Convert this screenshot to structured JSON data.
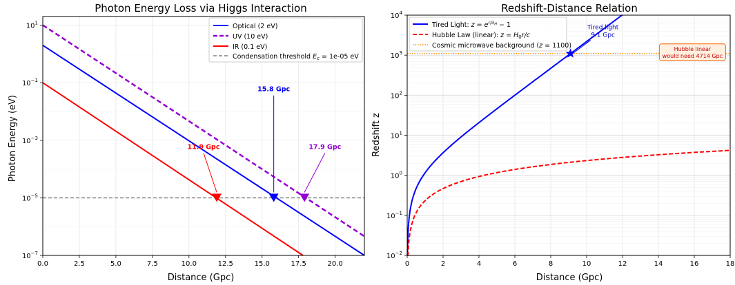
{
  "chart_data": [
    {
      "type": "line",
      "title": "Photon Energy Loss via Higgs Interaction",
      "xlabel": "Distance (Gpc)",
      "ylabel": "Photon Energy (eV)",
      "xlim": [
        0,
        22
      ],
      "ylim_log10": [
        -7,
        1.3
      ],
      "y_scale": "log",
      "grid": true,
      "legend_position": "top-right",
      "x_ticks": [
        "0.0",
        "2.5",
        "5.0",
        "7.5",
        "10.0",
        "12.5",
        "15.0",
        "17.5",
        "20.0"
      ],
      "y_ticks": [
        {
          "base": "10",
          "exp": "1",
          "value": 10
        },
        {
          "base": "10",
          "exp": "−1",
          "value": 0.1
        },
        {
          "base": "10",
          "exp": "−3",
          "value": 0.001
        },
        {
          "base": "10",
          "exp": "−5",
          "value": 1e-05
        },
        {
          "base": "10",
          "exp": "−7",
          "value": 1e-07
        }
      ],
      "series": [
        {
          "name": "Optical (2 eV)",
          "color": "#0000ff",
          "style": "solid",
          "E0": 2,
          "x": [
            0,
            22
          ],
          "y": [
            2,
            1e-07
          ]
        },
        {
          "name": "UV (10 eV)",
          "color": "#9400d3",
          "style": "dashed",
          "E0": 10,
          "x": [
            0,
            22
          ],
          "y": [
            10,
            4.6e-07
          ]
        },
        {
          "name": "IR (0.1 eV)",
          "color": "#ff0000",
          "style": "solid",
          "E0": 0.1,
          "x": [
            0,
            17.8
          ],
          "y": [
            0.1,
            1e-07
          ]
        }
      ],
      "threshold": {
        "legend_prefix": "Condensation threshold ",
        "legend_math": "E",
        "legend_sub": "c",
        "legend_suffix": " = 1e-05 eV",
        "value": 1e-05,
        "color": "#808080"
      },
      "markers": [
        {
          "x": 11.9,
          "y": 1e-05,
          "color": "#ff0000",
          "label": "11.9 Gpc",
          "label_x": 11.0,
          "label_y": 0.0005
        },
        {
          "x": 15.8,
          "y": 1e-05,
          "color": "#0000ff",
          "label": "15.8 Gpc",
          "label_x": 15.8,
          "label_y": 0.05
        },
        {
          "x": 17.9,
          "y": 1e-05,
          "color": "#9400d3",
          "label": "17.9 Gpc",
          "label_x": 19.3,
          "label_y": 0.0005
        }
      ]
    },
    {
      "type": "line",
      "title": "Redshift-Distance Relation",
      "xlabel": "Distance (Gpc)",
      "ylabel": "Redshift z",
      "xlim": [
        0,
        18
      ],
      "ylim_log10": [
        -2,
        4
      ],
      "y_scale": "log",
      "grid": true,
      "legend_position": "top-left",
      "x_ticks": [
        "0",
        "2",
        "4",
        "6",
        "8",
        "10",
        "12",
        "14",
        "16",
        "18"
      ],
      "y_ticks": [
        {
          "base": "10",
          "exp": "4",
          "value": 10000
        },
        {
          "base": "10",
          "exp": "3",
          "value": 1000
        },
        {
          "base": "10",
          "exp": "2",
          "value": 100
        },
        {
          "base": "10",
          "exp": "1",
          "value": 10
        },
        {
          "base": "10",
          "exp": "0",
          "value": 1
        },
        {
          "base": "10",
          "exp": "−1",
          "value": 0.1
        },
        {
          "base": "10",
          "exp": "−2",
          "value": 0.01
        }
      ],
      "series": [
        {
          "name": "Tired Light: z = e^(r/λH) − 1",
          "legend_prefix": "Tired Light: ",
          "legend_math": "z = e",
          "legend_sup": "r/λ",
          "legend_sup_sub": "H",
          "legend_suffix": " − 1",
          "color": "#0000ff",
          "style": "solid",
          "model": "exp",
          "lambda_gpc": 1.3,
          "x_max": 12
        },
        {
          "name": "Hubble Law (linear): z = H0 r/c",
          "legend_prefix": "Hubble Law (linear): ",
          "legend_math": "z = H",
          "legend_sub": "0",
          "legend_suffix": "r/c",
          "color": "#ff0000",
          "style": "dashed",
          "model": "linear",
          "slope_per_gpc": 0.2333,
          "x_max": 18
        }
      ],
      "cmb": {
        "legend_prefix": "Cosmic microwave background (",
        "legend_math": "z",
        "legend_suffix": " = 1100)",
        "value": 1100,
        "color": "#ff8c00"
      },
      "annotation": {
        "lines": [
          "Tired light",
          "9.1 Gpc"
        ],
        "x": 9.1,
        "y": 1100,
        "color": "#0000cc",
        "label_x": 10.6,
        "label_y": 3000
      },
      "note_box": {
        "lines": [
          "Hubble linear",
          "would need 4714 Gpc"
        ],
        "x": 15.9,
        "y": 800,
        "color": "#cc0000",
        "fill": "#fff0e0",
        "border": "#ff6600"
      }
    }
  ]
}
